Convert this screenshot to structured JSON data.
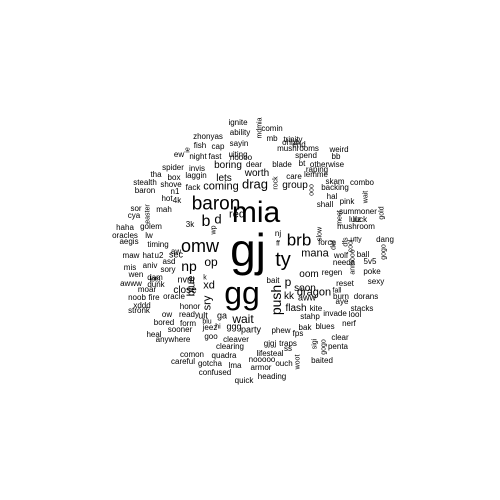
{
  "words": [
    {
      "text": "gj"
    },
    {
      "text": "gg"
    },
    {
      "text": "mia"
    },
    {
      "text": "baron"
    },
    {
      "text": "omw"
    },
    {
      "text": "ty"
    },
    {
      "text": "brb"
    },
    {
      "text": "push"
    },
    {
      "text": "b"
    },
    {
      "text": "np"
    },
    {
      "text": "op"
    },
    {
      "text": "red"
    },
    {
      "text": "d"
    },
    {
      "text": "blue"
    },
    {
      "text": "drag"
    },
    {
      "text": "p"
    },
    {
      "text": "wait"
    },
    {
      "text": "xd"
    },
    {
      "text": "sry"
    },
    {
      "text": "dragon"
    },
    {
      "text": "mana"
    },
    {
      "text": "coming"
    },
    {
      "text": "close"
    },
    {
      "text": "group"
    },
    {
      "text": "worth"
    },
    {
      "text": "lets"
    },
    {
      "text": "boring"
    },
    {
      "text": "flash"
    },
    {
      "text": "soon"
    },
    {
      "text": "oom"
    },
    {
      "text": "kk"
    },
    {
      "text": "aww"
    },
    {
      "text": "nvm"
    },
    {
      "text": "sec"
    },
    {
      "text": "bait"
    },
    {
      "text": "aw"
    },
    {
      "text": "ult"
    },
    {
      "text": "ga"
    },
    {
      "text": "ggg"
    },
    {
      "text": "party"
    },
    {
      "text": "force"
    },
    {
      "text": "regen"
    },
    {
      "text": "care"
    },
    {
      "text": "fast"
    },
    {
      "text": "night"
    },
    {
      "text": "laggin"
    },
    {
      "text": "invis"
    },
    {
      "text": "noooo"
    },
    {
      "text": "uiting"
    },
    {
      "text": "sayin"
    },
    {
      "text": "ability"
    },
    {
      "text": "ignite"
    },
    {
      "text": "cap"
    },
    {
      "text": "fish"
    },
    {
      "text": "zhonyas"
    },
    {
      "text": "mdmia"
    },
    {
      "text": "comin"
    },
    {
      "text": "mb"
    },
    {
      "text": "trinity"
    },
    {
      "text": "ohhh"
    },
    {
      "text": "end"
    },
    {
      "text": "mushrooms"
    },
    {
      "text": "spend"
    },
    {
      "text": "weird"
    },
    {
      "text": "bb"
    },
    {
      "text": "raping"
    },
    {
      "text": "otherwise"
    },
    {
      "text": "dear"
    },
    {
      "text": "blade"
    },
    {
      "text": "bt"
    },
    {
      "text": "lemme"
    },
    {
      "text": "skam"
    },
    {
      "text": "backing"
    },
    {
      "text": "hal"
    },
    {
      "text": "combo"
    },
    {
      "text": "wait"
    },
    {
      "text": "pink"
    },
    {
      "text": "shall"
    },
    {
      "text": "summoner"
    },
    {
      "text": "lulz"
    },
    {
      "text": "luck"
    },
    {
      "text": "mushroom"
    },
    {
      "text": "gold"
    },
    {
      "text": "dang"
    },
    {
      "text": "utty"
    },
    {
      "text": "dfs"
    },
    {
      "text": "def"
    },
    {
      "text": "gogo"
    },
    {
      "text": "cool"
    },
    {
      "text": "ball"
    },
    {
      "text": "poke"
    },
    {
      "text": "5v5"
    },
    {
      "text": "sexy"
    },
    {
      "text": "wolf"
    },
    {
      "text": "needa"
    },
    {
      "text": "reset"
    },
    {
      "text": "fall"
    },
    {
      "text": "burn"
    },
    {
      "text": "dorans"
    },
    {
      "text": "aye"
    },
    {
      "text": "stacks"
    },
    {
      "text": "invade"
    },
    {
      "text": "lool"
    },
    {
      "text": "nerf"
    },
    {
      "text": "clear"
    },
    {
      "text": "penta"
    },
    {
      "text": "baited"
    },
    {
      "text": "kite"
    },
    {
      "text": "stahp"
    },
    {
      "text": "bak"
    },
    {
      "text": "blues"
    },
    {
      "text": "fps"
    },
    {
      "text": "sigi"
    },
    {
      "text": "gogo"
    },
    {
      "text": "woot"
    },
    {
      "text": "ouch"
    },
    {
      "text": "phew"
    },
    {
      "text": "gjgj"
    },
    {
      "text": "traps"
    },
    {
      "text": "ss"
    },
    {
      "text": "lifesteal"
    },
    {
      "text": "nooooo"
    },
    {
      "text": "armor"
    },
    {
      "text": "heading"
    },
    {
      "text": "lma"
    },
    {
      "text": "quick"
    },
    {
      "text": "confused"
    },
    {
      "text": "gotcha"
    },
    {
      "text": "quadra"
    },
    {
      "text": "cleaver"
    },
    {
      "text": "clearing"
    },
    {
      "text": "comon"
    },
    {
      "text": "careful"
    },
    {
      "text": "sooner"
    },
    {
      "text": "heal"
    },
    {
      "text": "anywhere"
    },
    {
      "text": "bored"
    },
    {
      "text": "form"
    },
    {
      "text": "ow"
    },
    {
      "text": "ready"
    },
    {
      "text": "jeez"
    },
    {
      "text": "blu"
    },
    {
      "text": "hi"
    },
    {
      "text": "goo"
    },
    {
      "text": "stronk"
    },
    {
      "text": "noob"
    },
    {
      "text": "fire"
    },
    {
      "text": "oracle"
    },
    {
      "text": "honor"
    },
    {
      "text": "xddd"
    },
    {
      "text": "moar"
    },
    {
      "text": "dunk"
    },
    {
      "text": "awww"
    },
    {
      "text": "wen"
    },
    {
      "text": "mis"
    },
    {
      "text": "aniv"
    },
    {
      "text": "lots"
    },
    {
      "text": "dam"
    },
    {
      "text": "sory"
    },
    {
      "text": "asd"
    },
    {
      "text": "maw"
    },
    {
      "text": "hat"
    },
    {
      "text": "u2"
    },
    {
      "text": "timing"
    },
    {
      "text": "aegis"
    },
    {
      "text": "oracles"
    },
    {
      "text": "lw"
    },
    {
      "text": "haha"
    },
    {
      "text": "cya"
    },
    {
      "text": "sor"
    },
    {
      "text": "golem"
    },
    {
      "text": "easter"
    },
    {
      "text": "4k"
    },
    {
      "text": "3k"
    },
    {
      "text": "wp"
    },
    {
      "text": "hot"
    },
    {
      "text": "mah"
    },
    {
      "text": "stealth"
    },
    {
      "text": "baron"
    },
    {
      "text": "shove"
    },
    {
      "text": "n1"
    },
    {
      "text": "tha"
    },
    {
      "text": "box"
    },
    {
      "text": "spider"
    },
    {
      "text": "fack"
    },
    {
      "text": "ew"
    },
    {
      "text": "ie"
    },
    {
      "text": "k"
    },
    {
      "text": "nj"
    },
    {
      "text": "ff"
    },
    {
      "text": "rock"
    },
    {
      "text": "slow"
    },
    {
      "text": "meet"
    },
    {
      "text": "anmooo"
    },
    {
      "text": "ooo"
    }
  ]
}
